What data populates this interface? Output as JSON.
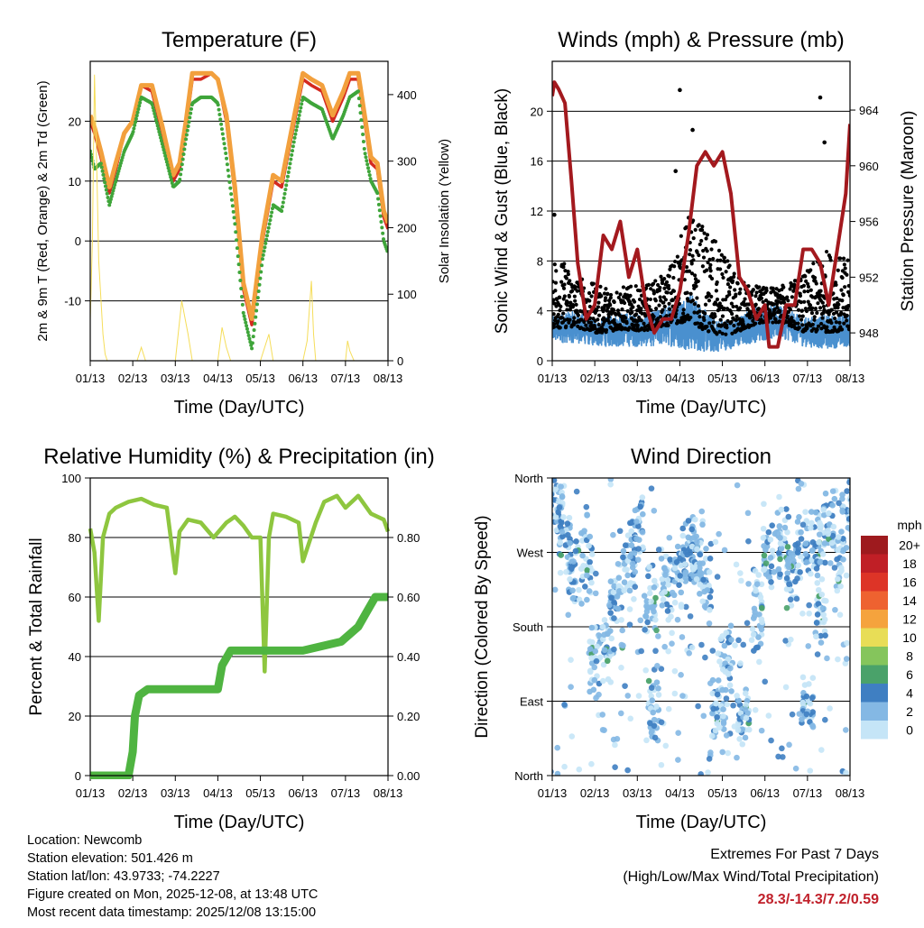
{
  "chart_data": [
    {
      "id": "temp",
      "type": "line",
      "title": "Temperature (F)",
      "xlabel": "Time (Day/UTC)",
      "ylabel": "2m & 9m T (Red, Orange) & 2m Td (Green)",
      "y2label": "Solar Insolation (Yellow)",
      "x_ticks": [
        "01/13",
        "02/13",
        "03/13",
        "04/13",
        "05/13",
        "06/13",
        "07/13",
        "08/13"
      ],
      "xlim": [
        0,
        7
      ],
      "ylim": [
        -20,
        30
      ],
      "y_ticks": [
        -10,
        0,
        10,
        20
      ],
      "y_ticklabels": [
        "-10",
        "0",
        "10",
        "20"
      ],
      "y2lim": [
        0,
        450
      ],
      "y2_ticks": [
        0,
        100,
        200,
        300,
        400
      ],
      "y2_ticklabels": [
        "0",
        "100",
        "200",
        "300",
        "400"
      ],
      "series": [
        {
          "name": "2m T",
          "color": "#d4291f",
          "x": [
            0,
            0.1,
            0.25,
            0.45,
            0.6,
            0.8,
            1.0,
            1.2,
            1.45,
            1.7,
            1.95,
            2.1,
            2.25,
            2.4,
            2.6,
            2.85,
            3.0,
            3.2,
            3.4,
            3.6,
            3.8,
            4.05,
            4.3,
            4.5,
            4.8,
            5.0,
            5.2,
            5.45,
            5.7,
            5.95,
            6.1,
            6.3,
            6.45,
            6.6,
            6.75,
            6.9,
            7.0
          ],
          "values": [
            20,
            18,
            14,
            8,
            12,
            18,
            20,
            26,
            25,
            18,
            10,
            12,
            19,
            27,
            27,
            28,
            27,
            20,
            8,
            -8,
            -14,
            0,
            10,
            9,
            20,
            27,
            26,
            25,
            20,
            24,
            27,
            27,
            20,
            13,
            12,
            4,
            2
          ]
        },
        {
          "name": "9m T",
          "color": "#f2a03d",
          "x": [
            0,
            0.1,
            0.25,
            0.45,
            0.6,
            0.8,
            1.0,
            1.2,
            1.45,
            1.7,
            1.95,
            2.1,
            2.25,
            2.4,
            2.6,
            2.85,
            3.0,
            3.2,
            3.4,
            3.6,
            3.8,
            4.05,
            4.3,
            4.5,
            4.8,
            5.0,
            5.2,
            5.45,
            5.7,
            5.95,
            6.1,
            6.3,
            6.45,
            6.6,
            6.75,
            6.9,
            7.0
          ],
          "values": [
            21,
            19,
            15,
            9,
            13,
            18,
            20,
            26,
            26,
            19,
            11,
            13,
            20,
            28,
            28,
            28,
            27,
            21,
            9,
            -7,
            -13,
            1,
            11,
            10,
            21,
            28,
            27,
            26,
            21,
            25,
            28,
            28,
            21,
            14,
            13,
            5,
            3
          ]
        },
        {
          "name": "2m Td",
          "color": "#3fa53a",
          "x": [
            0,
            0.1,
            0.25,
            0.45,
            0.6,
            0.8,
            1.0,
            1.2,
            1.45,
            1.7,
            1.95,
            2.1,
            2.25,
            2.4,
            2.6,
            2.85,
            3.0,
            3.2,
            3.4,
            3.6,
            3.8,
            4.05,
            4.3,
            4.5,
            4.8,
            5.0,
            5.2,
            5.45,
            5.7,
            5.95,
            6.1,
            6.3,
            6.45,
            6.6,
            6.75,
            6.9,
            7.0
          ],
          "values": [
            15,
            12,
            13,
            6,
            10,
            15,
            18,
            24,
            23,
            16,
            9,
            10,
            17,
            23,
            24,
            24,
            23,
            14,
            3,
            -12,
            -18,
            -3,
            6,
            5,
            17,
            24,
            23,
            22,
            17,
            21,
            24,
            25,
            15,
            10,
            8,
            0,
            -2
          ]
        },
        {
          "name": "Solar Insolation",
          "color": "#f5dd5a",
          "axis": "y2",
          "x": [
            0,
            0.05,
            0.1,
            0.15,
            0.2,
            0.3,
            0.35,
            0.4,
            1.1,
            1.2,
            1.3,
            2.0,
            2.15,
            2.3,
            2.4,
            3.0,
            3.1,
            3.2,
            3.3,
            4.0,
            4.2,
            4.3,
            5.0,
            5.1,
            5.2,
            5.25,
            5.3,
            6.0,
            6.05,
            6.1,
            6.2,
            7.0
          ],
          "values": [
            60,
            180,
            430,
            300,
            150,
            40,
            10,
            0,
            0,
            20,
            0,
            0,
            90,
            40,
            0,
            0,
            50,
            20,
            0,
            0,
            40,
            0,
            0,
            30,
            120,
            40,
            0,
            0,
            30,
            15,
            0,
            0
          ]
        }
      ]
    },
    {
      "id": "wind",
      "type": "scatter",
      "title": "Winds (mph) & Pressure (mb)",
      "xlabel": "Time (Day/UTC)",
      "ylabel": "Sonic Wind & Gust (Blue, Black)",
      "y2label": "Station Pressure (Maroon)",
      "x_ticks": [
        "01/13",
        "02/13",
        "03/13",
        "04/13",
        "05/13",
        "06/13",
        "07/13",
        "08/13"
      ],
      "xlim": [
        0,
        7
      ],
      "ylim": [
        0,
        24
      ],
      "y_ticks": [
        0,
        4,
        8,
        12,
        16,
        20
      ],
      "y_ticklabels": [
        "0",
        "4",
        "8",
        "12",
        "16",
        "20"
      ],
      "y2lim": [
        946,
        967.5
      ],
      "y2_ticks": [
        948,
        952,
        956,
        960,
        964
      ],
      "y2_ticklabels": [
        "948",
        "952",
        "956",
        "960",
        "964"
      ],
      "wind_baseline": [
        2.6,
        2.7,
        2.2,
        2.5,
        2.4,
        2.8,
        3.2,
        2.0,
        2.2,
        3.0,
        3.1,
        2.3,
        2.3,
        2.4
      ],
      "wind_amplitude": [
        1.2,
        1.3,
        1.1,
        1.4,
        1.3,
        1.6,
        2.4,
        1.4,
        1.2,
        1.5,
        1.3,
        1.2,
        1.4,
        1.3
      ],
      "gust_envelope": [
        8,
        6,
        5,
        5,
        5,
        6,
        11,
        9,
        6,
        5,
        5,
        6,
        8,
        7
      ],
      "gust_outliers": [
        {
          "x": 3.0,
          "y": 21.7
        },
        {
          "x": 6.3,
          "y": 21.1
        },
        {
          "x": 3.3,
          "y": 18.5
        },
        {
          "x": 6.4,
          "y": 17.5
        },
        {
          "x": 2.9,
          "y": 15.2
        },
        {
          "x": 0.05,
          "y": 11.7
        }
      ],
      "series": [
        {
          "name": "Station Pressure",
          "color": "#a3191e",
          "x": [
            0,
            0.05,
            0.15,
            0.3,
            0.45,
            0.6,
            0.8,
            1.0,
            1.2,
            1.4,
            1.6,
            1.8,
            2.0,
            2.2,
            2.4,
            2.6,
            2.8,
            3.0,
            3.2,
            3.4,
            3.6,
            3.8,
            4.0,
            4.2,
            4.4,
            4.6,
            4.8,
            5.0,
            5.1,
            5.3,
            5.5,
            5.7,
            5.9,
            6.1,
            6.3,
            6.5,
            6.7,
            6.9,
            7.0
          ],
          "values": [
            965,
            966,
            965.5,
            964.5,
            959,
            953,
            949,
            950,
            955,
            954,
            956,
            952,
            954,
            950,
            948,
            949,
            949,
            951,
            955,
            960,
            961,
            960,
            961,
            958,
            952,
            951,
            949,
            950,
            947,
            947,
            950,
            950,
            954,
            954,
            953,
            950,
            954,
            958,
            963
          ]
        }
      ]
    },
    {
      "id": "rh",
      "type": "line",
      "title": "Relative Humidity (%) & Precipitation (in)",
      "xlabel": "Time (Day/UTC)",
      "ylabel": "Percent & Total Rainfall",
      "x_ticks": [
        "01/13",
        "02/13",
        "03/13",
        "04/13",
        "05/13",
        "06/13",
        "07/13",
        "08/13"
      ],
      "xlim": [
        0,
        7
      ],
      "ylim": [
        0,
        100
      ],
      "y_ticks": [
        0,
        20,
        40,
        60,
        80,
        100
      ],
      "y_ticklabels": [
        "0",
        "20",
        "40",
        "60",
        "80",
        "100"
      ],
      "y2lim": [
        0,
        1.0
      ],
      "y2_ticks": [
        0,
        0.2,
        0.4,
        0.6,
        0.8
      ],
      "y2_ticklabels": [
        "0.00",
        "0.20",
        "0.40",
        "0.60",
        "0.80"
      ],
      "series": [
        {
          "name": "Relative Humidity",
          "color": "#8ec63f",
          "x": [
            0,
            0.1,
            0.2,
            0.3,
            0.45,
            0.6,
            0.9,
            1.2,
            1.5,
            1.8,
            2.0,
            2.1,
            2.3,
            2.6,
            2.9,
            3.2,
            3.4,
            3.6,
            3.8,
            4.0,
            4.1,
            4.2,
            4.3,
            4.6,
            4.9,
            5.0,
            5.3,
            5.5,
            5.8,
            6.0,
            6.3,
            6.6,
            6.9,
            7.0
          ],
          "values": [
            83,
            75,
            52,
            80,
            88,
            90,
            92,
            93,
            91,
            90,
            68,
            82,
            86,
            85,
            80,
            85,
            87,
            84,
            80,
            80,
            35,
            80,
            88,
            87,
            85,
            72,
            85,
            92,
            94,
            90,
            94,
            88,
            86,
            82
          ]
        },
        {
          "name": "Total Precipitation",
          "color": "#4fb441",
          "x": [
            0,
            0.9,
            1.0,
            1.05,
            1.15,
            1.35,
            3.0,
            3.1,
            3.3,
            5.0,
            5.6,
            5.9,
            6.3,
            6.5,
            6.7,
            7.0
          ],
          "values": [
            0,
            0,
            0.08,
            0.2,
            0.27,
            0.29,
            0.29,
            0.37,
            0.42,
            0.42,
            0.44,
            0.45,
            0.5,
            0.55,
            0.6,
            0.6
          ]
        }
      ]
    },
    {
      "id": "dir",
      "type": "scatter",
      "title": "Wind Direction",
      "xlabel": "Time (Day/UTC)",
      "ylabel": "Direction (Colored By Speed)",
      "x_ticks": [
        "01/13",
        "02/13",
        "03/13",
        "04/13",
        "05/13",
        "06/13",
        "07/13",
        "08/13"
      ],
      "xlim": [
        0,
        7
      ],
      "ylim": [
        0,
        360
      ],
      "y_ticks": [
        0,
        90,
        180,
        270,
        360
      ],
      "y_ticklabels": [
        "North",
        "East",
        "South",
        "West",
        "North"
      ],
      "colorbar": {
        "units": "mph",
        "labels": [
          "20+",
          "18",
          "16",
          "14",
          "12",
          "10",
          "8",
          "6",
          "4",
          "2",
          "0"
        ],
        "colors": [
          "#9e1a1e",
          "#c01f26",
          "#dd3427",
          "#ee6230",
          "#f5a33d",
          "#e8dd56",
          "#85c55c",
          "#4aa26a",
          "#3f7fc2",
          "#84b8e4",
          "#c5e5f7"
        ]
      },
      "clusters": [
        {
          "x": 0.1,
          "dir": 330,
          "spread": 45
        },
        {
          "x": 0.3,
          "dir": 300,
          "spread": 60
        },
        {
          "x": 0.5,
          "dir": 250,
          "spread": 50
        },
        {
          "x": 0.8,
          "dir": 260,
          "spread": 60
        },
        {
          "x": 1.0,
          "dir": 140,
          "spread": 50
        },
        {
          "x": 1.3,
          "dir": 150,
          "spread": 50
        },
        {
          "x": 1.5,
          "dir": 220,
          "spread": 40
        },
        {
          "x": 1.8,
          "dir": 260,
          "spread": 50
        },
        {
          "x": 2.0,
          "dir": 300,
          "spread": 50
        },
        {
          "x": 2.3,
          "dir": 210,
          "spread": 50
        },
        {
          "x": 2.4,
          "dir": 80,
          "spread": 40
        },
        {
          "x": 2.7,
          "dir": 230,
          "spread": 50
        },
        {
          "x": 3.0,
          "dir": 250,
          "spread": 40
        },
        {
          "x": 3.2,
          "dir": 280,
          "spread": 50
        },
        {
          "x": 3.4,
          "dir": 270,
          "spread": 50
        },
        {
          "x": 3.6,
          "dir": 230,
          "spread": 50
        },
        {
          "x": 3.9,
          "dir": 80,
          "spread": 40
        },
        {
          "x": 4.1,
          "dir": 140,
          "spread": 50
        },
        {
          "x": 4.5,
          "dir": 70,
          "spread": 40
        },
        {
          "x": 4.8,
          "dir": 200,
          "spread": 60
        },
        {
          "x": 5.1,
          "dir": 270,
          "spread": 60
        },
        {
          "x": 5.4,
          "dir": 280,
          "spread": 50
        },
        {
          "x": 5.6,
          "dir": 240,
          "spread": 50
        },
        {
          "x": 5.9,
          "dir": 280,
          "spread": 50
        },
        {
          "x": 6.0,
          "dir": 90,
          "spread": 40
        },
        {
          "x": 6.2,
          "dir": 280,
          "spread": 50
        },
        {
          "x": 6.3,
          "dir": 200,
          "spread": 40
        },
        {
          "x": 6.5,
          "dir": 300,
          "spread": 50
        },
        {
          "x": 6.8,
          "dir": 280,
          "spread": 60
        },
        {
          "x": 6.95,
          "dir": 330,
          "spread": 40
        }
      ]
    }
  ],
  "info": {
    "location": "Location: Newcomb",
    "elevation": "Station elevation: 501.426 m",
    "latlon": "Station lat/lon: 43.9733; -74.2227",
    "created": "Figure created on Mon, 2025-12-08, at 13:48 UTC",
    "latest": "Most recent data timestamp: 2025/12/08 13:15:00"
  },
  "extremes": {
    "heading": "Extremes For Past 7 Days",
    "subheading": "(High/Low/Max Wind/Total Precipitation)",
    "values": "28.3/-14.3/7.2/0.59"
  }
}
